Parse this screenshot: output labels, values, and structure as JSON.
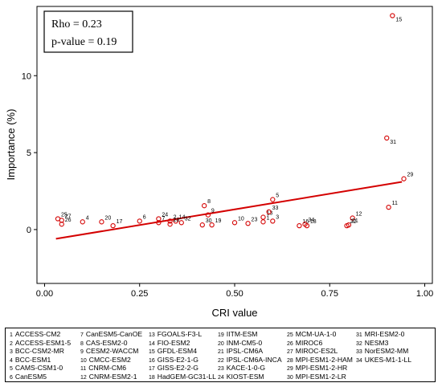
{
  "chart_data": {
    "type": "scatter",
    "title": "",
    "xlabel": "CRI value",
    "ylabel": "Importance (%)",
    "xlim": [
      -0.02,
      1.02
    ],
    "ylim": [
      -3.5,
      14.5
    ],
    "xticks": [
      "0.00",
      "0.25",
      "0.50",
      "0.75",
      "1.00"
    ],
    "xtick_values": [
      0,
      0.25,
      0.5,
      0.75,
      1.0
    ],
    "yticks": [
      "0",
      "5",
      "10"
    ],
    "ytick_values": [
      0,
      5,
      10
    ],
    "stats": {
      "rho": "Rho = 0.23",
      "p": "p-value = 0.19"
    },
    "trend_line": {
      "x": [
        0.03,
        0.94
      ],
      "y": [
        -0.6,
        3.1
      ],
      "color": "#d40000"
    },
    "point_color": "#d40000",
    "points": [
      {
        "id": "1",
        "x": 0.575,
        "y": 0.5
      },
      {
        "id": "2",
        "x": 0.33,
        "y": 0.55
      },
      {
        "id": "3",
        "x": 0.6,
        "y": 0.55
      },
      {
        "id": "4",
        "x": 0.1,
        "y": 0.5
      },
      {
        "id": "5",
        "x": 0.6,
        "y": 1.95
      },
      {
        "id": "6",
        "x": 0.25,
        "y": 0.55
      },
      {
        "id": "7",
        "x": 0.3,
        "y": 0.45
      },
      {
        "id": "8",
        "x": 0.42,
        "y": 1.55
      },
      {
        "id": "9",
        "x": 0.43,
        "y": 0.95
      },
      {
        "id": "10",
        "x": 0.5,
        "y": 0.45
      },
      {
        "id": "11",
        "x": 0.905,
        "y": 1.45
      },
      {
        "id": "12",
        "x": 0.81,
        "y": 0.75
      },
      {
        "id": "13",
        "x": 0.575,
        "y": 0.8
      },
      {
        "id": "14",
        "x": 0.345,
        "y": 0.55
      },
      {
        "id": "15",
        "x": 0.915,
        "y": 13.9
      },
      {
        "id": "16",
        "x": 0.67,
        "y": 0.25
      },
      {
        "id": "17",
        "x": 0.18,
        "y": 0.25
      },
      {
        "id": "18",
        "x": 0.69,
        "y": 0.25
      },
      {
        "id": "19",
        "x": 0.44,
        "y": 0.3
      },
      {
        "id": "20",
        "x": 0.15,
        "y": 0.5
      },
      {
        "id": "21",
        "x": 0.8,
        "y": 0.3
      },
      {
        "id": "22",
        "x": 0.795,
        "y": 0.25
      },
      {
        "id": "23",
        "x": 0.535,
        "y": 0.4
      },
      {
        "id": "24",
        "x": 0.3,
        "y": 0.7
      },
      {
        "id": "25",
        "x": 0.035,
        "y": 0.7
      },
      {
        "id": "26",
        "x": 0.045,
        "y": 0.35
      },
      {
        "id": "27",
        "x": 0.045,
        "y": 0.6
      },
      {
        "id": "28",
        "x": 0.33,
        "y": 0.35
      },
      {
        "id": "29",
        "x": 0.945,
        "y": 3.3
      },
      {
        "id": "30",
        "x": 0.415,
        "y": 0.3
      },
      {
        "id": "31",
        "x": 0.9,
        "y": 5.95
      },
      {
        "id": "32",
        "x": 0.36,
        "y": 0.45
      },
      {
        "id": "33",
        "x": 0.59,
        "y": 1.15
      },
      {
        "id": "34",
        "x": 0.685,
        "y": 0.35
      }
    ],
    "legend": [
      {
        "num": "1",
        "name": "ACCESS-CM2"
      },
      {
        "num": "2",
        "name": "ACCESS-ESM1-5"
      },
      {
        "num": "3",
        "name": "BCC-CSM2-MR"
      },
      {
        "num": "4",
        "name": "BCC-ESM1"
      },
      {
        "num": "5",
        "name": "CAMS-CSM1-0"
      },
      {
        "num": "6",
        "name": "CanESM5"
      },
      {
        "num": "7",
        "name": "CanESM5-CanOE"
      },
      {
        "num": "8",
        "name": "CAS-ESM2-0"
      },
      {
        "num": "9",
        "name": "CESM2-WACCM"
      },
      {
        "num": "10",
        "name": "CMCC-ESM2"
      },
      {
        "num": "11",
        "name": "CNRM-CM6"
      },
      {
        "num": "12",
        "name": "CNRM-ESM2-1"
      },
      {
        "num": "13",
        "name": "FGOALS-F3-L"
      },
      {
        "num": "14",
        "name": "FIO-ESM2"
      },
      {
        "num": "15",
        "name": "GFDL-ESM4"
      },
      {
        "num": "16",
        "name": "GISS-E2-1-G"
      },
      {
        "num": "17",
        "name": "GISS-E2-2-G"
      },
      {
        "num": "18",
        "name": "HadGEM-GC31-LL"
      },
      {
        "num": "19",
        "name": "IITM-ESM"
      },
      {
        "num": "20",
        "name": "INM-CM5-0"
      },
      {
        "num": "21",
        "name": "IPSL-CM6A"
      },
      {
        "num": "22",
        "name": "IPSL-CM6A-INCA"
      },
      {
        "num": "23",
        "name": "KACE-1-0-G"
      },
      {
        "num": "24",
        "name": "KIOST-ESM"
      },
      {
        "num": "25",
        "name": "MCM-UA-1-0"
      },
      {
        "num": "26",
        "name": "MIROC6"
      },
      {
        "num": "27",
        "name": "MIROC-ES2L"
      },
      {
        "num": "28",
        "name": "MPI-ESM1-2-HAM"
      },
      {
        "num": "29",
        "name": "MPI-ESM1-2-HR"
      },
      {
        "num": "30",
        "name": "MPI-ESM1-2-LR"
      },
      {
        "num": "31",
        "name": "MRI-ESM2-0"
      },
      {
        "num": "32",
        "name": "NESM3"
      },
      {
        "num": "33",
        "name": "NorESM2-MM"
      },
      {
        "num": "34",
        "name": "UKES-M1-1-LL"
      }
    ]
  }
}
